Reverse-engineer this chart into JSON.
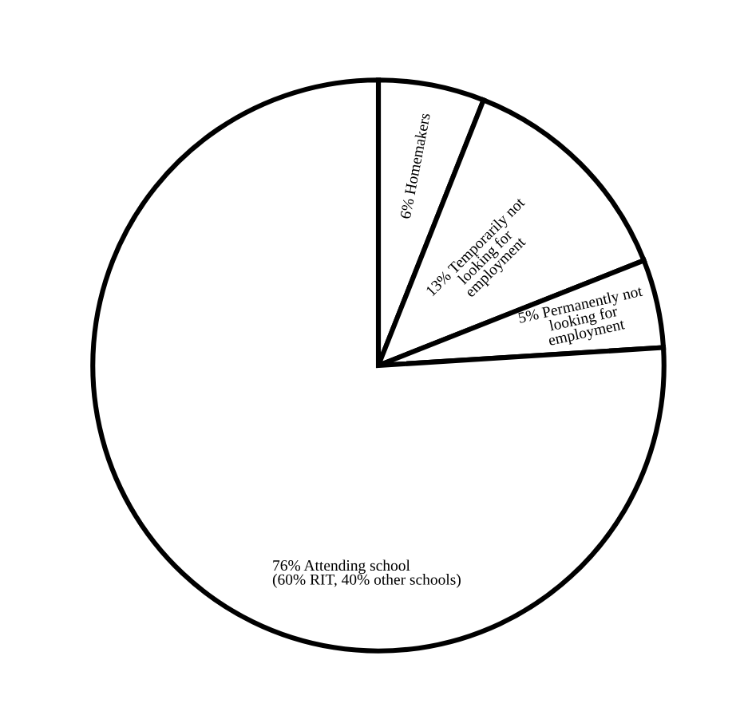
{
  "chart_data": {
    "type": "pie",
    "categories": [
      "6% Homemakers",
      "13% Temporarily not\nlooking for\nemployment",
      "5% Permanently not\nlooking for\nemployment",
      "76% Attending school\n(60% RIT, 40% other schools)"
    ],
    "values": [
      6,
      13,
      5,
      76
    ],
    "colors": [
      "#ffffff",
      "#ffffff",
      "#ffffff",
      "#ffffff"
    ]
  }
}
